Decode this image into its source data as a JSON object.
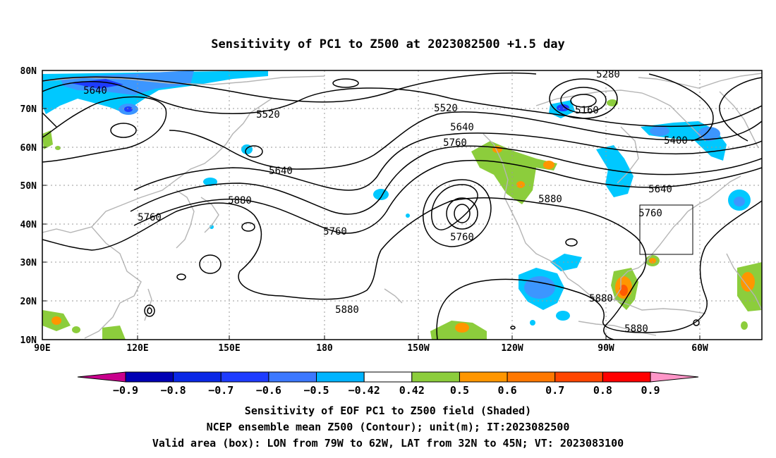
{
  "title": "Sensitivity of PC1 to Z500 at 2023082500 +1.5 day",
  "map": {
    "lon_labels": [
      "90E",
      "120E",
      "150E",
      "180",
      "150W",
      "120W",
      "90W",
      "60W"
    ],
    "lat_labels": [
      "80N",
      "70N",
      "60N",
      "50N",
      "40N",
      "30N",
      "20N",
      "10N"
    ],
    "contour_labels": [
      "5640",
      "5520",
      "5520",
      "5640",
      "5760",
      "5640",
      "5880",
      "5760",
      "5760",
      "5760",
      "5880",
      "5280",
      "5160",
      "5400",
      "5640",
      "5760",
      "5880",
      "5880"
    ],
    "valid_box": {
      "lon_min": -79,
      "lon_max": -62,
      "lat_min": 32,
      "lat_max": 45
    },
    "shading_colors": {
      "neg_light": "#00c8ff",
      "neg_mid": "#3c96ff",
      "neg_dark": "#1e3cff",
      "pos_light": "#8ccd3c",
      "pos_mid": "#ff9600",
      "pos_dark": "#ff5a00"
    }
  },
  "colorbar": {
    "labels": [
      "−0.9",
      "−0.8",
      "−0.7",
      "−0.6",
      "−0.5",
      "−0.42",
      "0.42",
      "0.5",
      "0.6",
      "0.7",
      "0.8",
      "0.9"
    ],
    "colors": [
      "#0000b4",
      "#0a28e6",
      "#1e3cff",
      "#3c78ff",
      "#00b4ff",
      "#ffffff",
      "#8ccd3c",
      "#ff9600",
      "#ff7800",
      "#ff4600",
      "#ff0000"
    ],
    "end_low": "#c8008c",
    "end_high": "#ff96c8"
  },
  "caption": {
    "line1": "Sensitivity of EOF PC1 to Z500 field (Shaded)",
    "line2": "NCEP ensemble mean Z500 (Contour); unit(m); IT:2023082500",
    "line3": "Valid area (box): LON from 79W to 62W, LAT from 32N to 45N; VT: 2023083100"
  }
}
